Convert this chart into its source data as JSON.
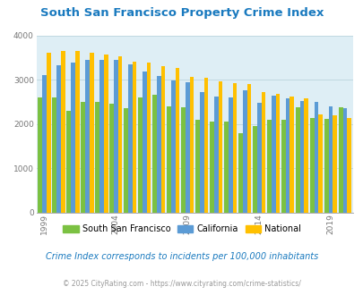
{
  "title": "South San Francisco Property Crime Index",
  "subtitle": "Crime Index corresponds to incidents per 100,000 inhabitants",
  "copyright": "© 2025 CityRating.com - https://www.cityrating.com/crime-statistics/",
  "years": [
    1999,
    2000,
    2001,
    2002,
    2003,
    2004,
    2005,
    2006,
    2007,
    2008,
    2009,
    2010,
    2011,
    2012,
    2013,
    2014,
    2015,
    2016,
    2017,
    2018,
    2019,
    2020
  ],
  "ssf": [
    2600,
    2600,
    2300,
    2500,
    2500,
    2450,
    2350,
    2600,
    2650,
    2400,
    2380,
    2100,
    2060,
    2060,
    1800,
    1950,
    2100,
    2100,
    2380,
    2140,
    2120,
    2380
  ],
  "california": [
    3100,
    3330,
    3380,
    3450,
    3450,
    3450,
    3350,
    3180,
    3080,
    2980,
    2950,
    2720,
    2620,
    2600,
    2750,
    2480,
    2640,
    2580,
    2510,
    2490,
    2400,
    2360
  ],
  "national": [
    3600,
    3650,
    3650,
    3600,
    3560,
    3520,
    3410,
    3380,
    3300,
    3260,
    3060,
    3050,
    2960,
    2930,
    2900,
    2720,
    2680,
    2620,
    2570,
    2220,
    2200,
    2130
  ],
  "ssf_color": "#7bc142",
  "california_color": "#5b9bd5",
  "national_color": "#ffc000",
  "background_color": "#deeef5",
  "title_color": "#1a7abf",
  "ylim": [
    0,
    4000
  ],
  "yticks": [
    0,
    1000,
    2000,
    3000,
    4000
  ],
  "xtick_years": [
    1999,
    2004,
    2009,
    2014,
    2019
  ],
  "legend_labels": [
    "South San Francisco",
    "California",
    "National"
  ],
  "grid_color": "#c0d8e0",
  "subtitle_color": "#1a7abf",
  "copyright_color": "#999999"
}
